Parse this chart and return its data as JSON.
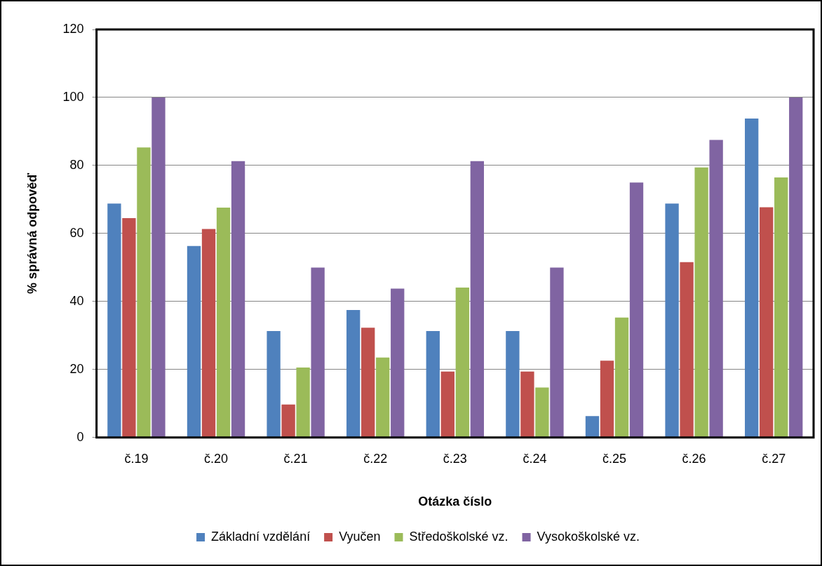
{
  "chart_data": {
    "type": "bar",
    "xlabel": "Otázka číslo",
    "ylabel": "% správná odpověď",
    "categories": [
      "č.19",
      "č.20",
      "č.21",
      "č.22",
      "č.23",
      "č.24",
      "č.25",
      "č.26",
      "č.27"
    ],
    "series": [
      {
        "name": "Základní vzdělání",
        "color": "#4f81bd",
        "values": [
          68.8,
          56.3,
          31.3,
          37.5,
          31.3,
          31.3,
          6.3,
          68.8,
          93.8
        ]
      },
      {
        "name": "Vyučen",
        "color": "#c0504d",
        "values": [
          64.5,
          61.3,
          9.7,
          32.3,
          19.4,
          19.4,
          22.6,
          51.6,
          67.7
        ]
      },
      {
        "name": "Středoškolské vz.",
        "color": "#9bbb59",
        "values": [
          85.3,
          67.6,
          20.6,
          23.5,
          44.1,
          14.7,
          35.3,
          79.4,
          76.5
        ]
      },
      {
        "name": "Vysokoškolské vz.",
        "color": "#8064a2",
        "values": [
          100,
          81.3,
          50,
          43.8,
          81.3,
          50,
          75,
          87.5,
          100
        ]
      }
    ],
    "ylim": [
      0,
      120
    ],
    "yticks": [
      0,
      20,
      40,
      60,
      80,
      100,
      120
    ],
    "grid": "y",
    "legend": "bottom"
  }
}
